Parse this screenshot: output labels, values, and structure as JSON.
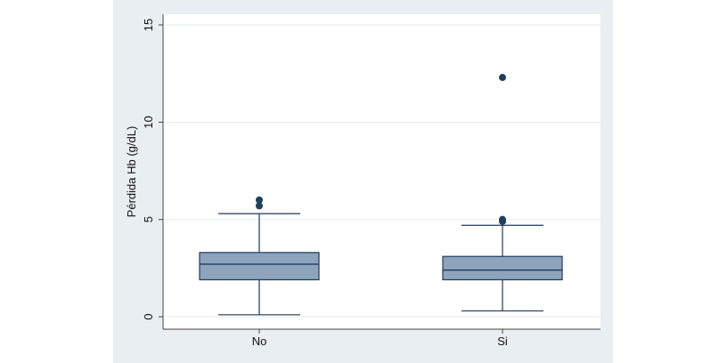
{
  "chart_data": {
    "type": "box",
    "ylabel": "Pérdida Hb (g/dL)",
    "xlabel": "",
    "ylim": [
      -0.6,
      15.5
    ],
    "yticks": [
      0,
      5,
      10,
      15
    ],
    "ytick_labels": [
      "0",
      "5",
      "10",
      "15"
    ],
    "grid": true,
    "categories": [
      "No",
      "Si"
    ],
    "boxes": [
      {
        "category": "No",
        "whisker_low": 0.1,
        "q1": 1.9,
        "median": 2.7,
        "q3": 3.3,
        "whisker_high": 5.3,
        "outliers": [
          5.7,
          6.0
        ]
      },
      {
        "category": "Si",
        "whisker_low": 0.3,
        "q1": 1.9,
        "median": 2.4,
        "q3": 3.1,
        "whisker_high": 4.7,
        "outliers": [
          4.9,
          5.0,
          12.3
        ]
      }
    ],
    "colors": {
      "box_fill": "#8ea4bc",
      "box_stroke": "#1f3a5a",
      "outlier": "#1f3f5f",
      "frame_bg": "#e8eef2",
      "grid": "#e6ebef"
    }
  }
}
